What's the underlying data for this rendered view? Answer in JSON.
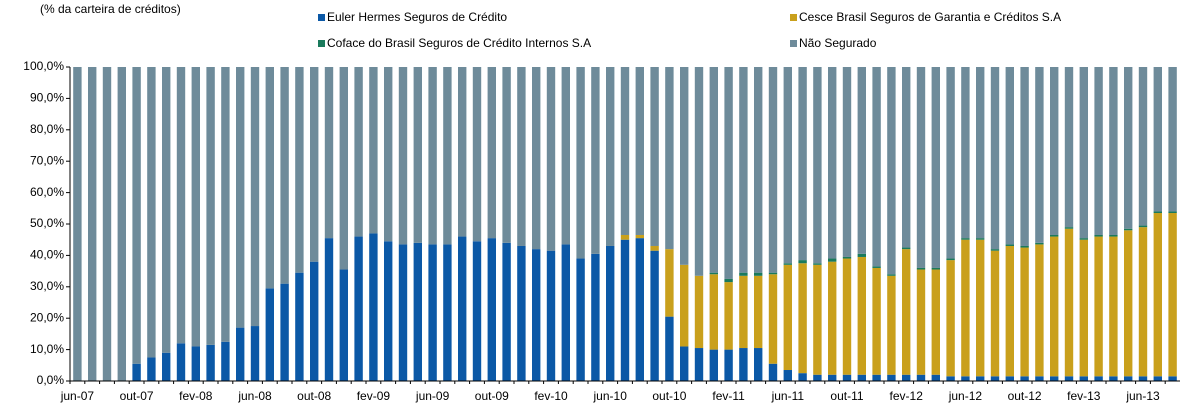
{
  "chart_data": {
    "type": "stacked_bar",
    "subtitle": "(% da carteira de créditos)",
    "categories": [
      "jun-07",
      null,
      null,
      null,
      "out-07",
      null,
      null,
      null,
      "fev-08",
      null,
      null,
      null,
      "jun-08",
      null,
      null,
      null,
      "out-08",
      null,
      null,
      null,
      "fev-09",
      null,
      null,
      null,
      "jun-09",
      null,
      null,
      null,
      "out-09",
      null,
      null,
      null,
      "fev-10",
      null,
      null,
      null,
      "jun-10",
      null,
      null,
      null,
      "out-10",
      null,
      null,
      null,
      "fev-11",
      null,
      null,
      null,
      "jun-11",
      null,
      null,
      null,
      "out-11",
      null,
      null,
      null,
      "fev-12",
      null,
      null,
      null,
      "jun-12",
      null,
      null,
      null,
      "out-12",
      null,
      null,
      null,
      "fev-13",
      null,
      null,
      null,
      "jun-13",
      null,
      null
    ],
    "series": [
      {
        "name": "Euler Hermes Seguros de Crédito",
        "color": "#0b58a6",
        "values": [
          0,
          0,
          0,
          0,
          5.5,
          7.5,
          9,
          12,
          11,
          11.5,
          12.5,
          17,
          17.5,
          29.5,
          31,
          34.5,
          38,
          45.5,
          35.5,
          46,
          47,
          44.5,
          43.5,
          44,
          43.5,
          43.5,
          46,
          44.5,
          45.5,
          44,
          43,
          42,
          41.5,
          43.5,
          39,
          40.5,
          43,
          45,
          45.5,
          41.5,
          20.5,
          11,
          10.5,
          10,
          10,
          10.5,
          10.5,
          5.5,
          3.5,
          2.5,
          2,
          2,
          2,
          2,
          2,
          2,
          2,
          2,
          2,
          1.5,
          1.5,
          1.5,
          1.5,
          1.5,
          1.5,
          1.5,
          1.5,
          1.5,
          1.5,
          1.5,
          1.5,
          1.5,
          1.5,
          1.5,
          1.5
        ]
      },
      {
        "name": "Cesce Brasil Seguros de Garantia e Créditos S.A",
        "color": "#c9a01c",
        "values": [
          0,
          0,
          0,
          0,
          0,
          0,
          0,
          0,
          0,
          0,
          0,
          0,
          0,
          0,
          0,
          0,
          0,
          0,
          0,
          0,
          0,
          0,
          0,
          0,
          0,
          0,
          0,
          0,
          0,
          0,
          0,
          0,
          0,
          0,
          0,
          0,
          0,
          1.5,
          1,
          1.5,
          21.5,
          26,
          23,
          24,
          21.5,
          23,
          23,
          28.5,
          33.5,
          35,
          35,
          36,
          37,
          37.5,
          34,
          31.5,
          40,
          33.5,
          33.5,
          37,
          43.5,
          43.5,
          40,
          41.5,
          41,
          42,
          44.5,
          47,
          43.5,
          44.5,
          44.5,
          46.5,
          47.5,
          52,
          52
        ]
      },
      {
        "name": "Coface do Brasil Seguros de Crédito Internos S.A",
        "color": "#1a7a5c",
        "values": [
          0,
          0,
          0,
          0,
          0,
          0,
          0,
          0,
          0,
          0,
          0,
          0,
          0,
          0,
          0,
          0,
          0,
          0,
          0,
          0,
          0,
          0,
          0,
          0,
          0,
          0,
          0,
          0,
          0,
          0,
          0,
          0,
          0,
          0,
          0,
          0,
          0,
          0,
          0,
          0,
          0,
          0,
          0,
          0.5,
          1,
          1,
          1,
          0.5,
          0.5,
          1,
          0.5,
          1,
          0.5,
          1,
          0.5,
          0.5,
          0.5,
          0.5,
          0.5,
          0.5,
          0.5,
          0.5,
          0.5,
          0.5,
          0.5,
          0.5,
          0.5,
          0.5,
          0.5,
          0.5,
          0.5,
          0.5,
          0.5,
          0.5,
          0.5
        ]
      },
      {
        "name": "Não Segurado",
        "color": "#6e8b9a",
        "values": [
          100,
          100,
          100,
          100,
          94.5,
          92.5,
          91,
          88,
          89,
          88.5,
          87.5,
          83,
          82.5,
          70.5,
          69,
          65.5,
          62,
          54.5,
          64.5,
          54,
          53,
          55.5,
          56.5,
          56,
          56.5,
          56.5,
          54,
          55.5,
          54.5,
          56,
          57,
          58,
          58.5,
          56.5,
          61,
          59.5,
          57,
          53.5,
          53.5,
          57,
          58,
          63,
          66.5,
          65.5,
          67.5,
          65.5,
          65.5,
          65.5,
          62.5,
          61.5,
          62.5,
          61,
          60.5,
          59.5,
          63.5,
          66,
          57.5,
          64,
          64,
          61,
          54.5,
          54.5,
          58,
          56.5,
          57,
          56,
          53.5,
          51,
          54.5,
          53.5,
          53.5,
          51.5,
          50.5,
          46,
          46
        ]
      }
    ],
    "ylim": [
      0,
      100
    ],
    "yticks": [
      {
        "value": 0,
        "label": "0,0%"
      },
      {
        "value": 10,
        "label": "10,0%"
      },
      {
        "value": 20,
        "label": "20,0%"
      },
      {
        "value": 30,
        "label": "30,0%"
      },
      {
        "value": 40,
        "label": "40,0%"
      },
      {
        "value": 50,
        "label": "50,0%"
      },
      {
        "value": 60,
        "label": "60,0%"
      },
      {
        "value": 70,
        "label": "70,0%"
      },
      {
        "value": 80,
        "label": "80,0%"
      },
      {
        "value": 90,
        "label": "90,0%"
      },
      {
        "value": 100,
        "label": "100,0%"
      }
    ]
  }
}
